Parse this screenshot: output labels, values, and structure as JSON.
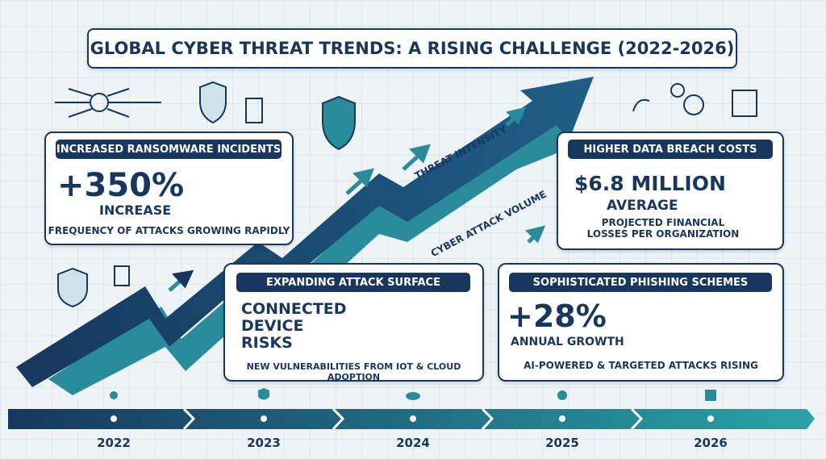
{
  "title": "GLOBAL CYBER THREAT TRENDS: A RISING CHALLENGE (2022-2026)",
  "arrow_labels": [
    "THREAT INTENSITY",
    "CYBER ATTACK VOLUME"
  ],
  "cards": [
    {
      "header": "INCREASED RANSOMWARE INCIDENTS",
      "stat": "+350%",
      "stat_label": "INCREASE",
      "note": "FREQUENCY OF ATTACKS GROWING RAPIDLY"
    },
    {
      "header": "HIGHER DATA BREACH COSTS",
      "stat": "$6.8 MILLION",
      "stat_label": "AVERAGE",
      "note": "PROJECTED FINANCIAL LOSSES PER ORGANIZATION"
    },
    {
      "header": "EXPANDING ATTACK SURFACE",
      "stat_lines": [
        "CONNECTED",
        "DEVICE",
        "RISKS"
      ],
      "note": "NEW VULNERABILITIES FROM IOT & CLOUD ADOPTION"
    },
    {
      "header": "SOPHISTICATED PHISHING SCHEMES",
      "stat": "+28%",
      "stat_label": "ANNUAL GROWTH",
      "note": "AI-POWERED & TARGETED ATTACKS RISING"
    }
  ],
  "timeline": [
    "2022",
    "2023",
    "2024",
    "2025",
    "2026"
  ]
}
